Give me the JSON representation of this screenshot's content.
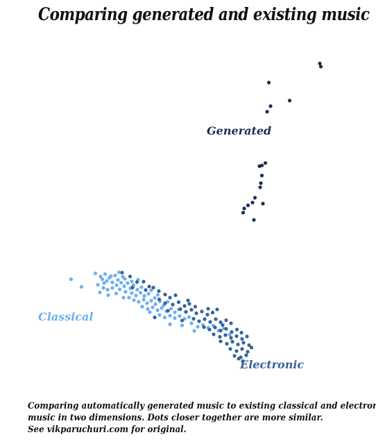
{
  "title": "Comparing generated and existing music",
  "caption": {
    "line1": "Comparing automatically generated music to existing classical and electronic",
    "line2": "music in two dimensions.  Dots closer together are more similar.",
    "line3": "See vikparuchuri.com for original."
  },
  "chart_data": {
    "type": "scatter",
    "title": "Comparing generated and existing music",
    "xlabel": "",
    "ylabel": "",
    "grid": false,
    "legend": "none (series labeled directly on plot)",
    "axes_shown": false,
    "units": "unlabeled 2D embedding; x increases rightward, y increases upward, values estimated on a 0–100 scale",
    "series": [
      {
        "name": "Generated",
        "color": "#1b2f52",
        "points": [
          [
            84.2,
            91.7
          ],
          [
            84.5,
            90.8
          ],
          [
            69.5,
            86.2
          ],
          [
            75.5,
            81.0
          ],
          [
            70.0,
            79.4
          ],
          [
            69.0,
            77.8
          ],
          [
            68.5,
            63.0
          ],
          [
            67.5,
            62.3
          ],
          [
            66.8,
            62.1
          ],
          [
            67.5,
            59.4
          ],
          [
            67.2,
            57.2
          ],
          [
            67.0,
            56.0
          ],
          [
            65.5,
            53.0
          ],
          [
            64.8,
            51.6
          ],
          [
            67.8,
            51.3
          ],
          [
            63.5,
            50.8
          ],
          [
            62.4,
            49.9
          ],
          [
            62.1,
            48.7
          ],
          [
            65.2,
            46.6
          ]
        ]
      },
      {
        "name": "Classical",
        "color": "#6fb0ee",
        "points": [
          [
            12.5,
            29.5
          ],
          [
            15.5,
            27.3
          ],
          [
            19.5,
            31.2
          ],
          [
            21.0,
            30.3
          ],
          [
            21.5,
            29.5
          ],
          [
            22.3,
            31.0
          ],
          [
            22.0,
            28.4
          ],
          [
            23.5,
            29.9
          ],
          [
            24.4,
            28.6
          ],
          [
            25.2,
            30.6
          ],
          [
            26.0,
            29.3
          ],
          [
            26.9,
            28.5
          ],
          [
            27.4,
            30.2
          ],
          [
            20.2,
            27.9
          ],
          [
            21.8,
            27.0
          ],
          [
            23.0,
            26.5
          ],
          [
            24.4,
            27.0
          ],
          [
            25.6,
            27.8
          ],
          [
            26.5,
            26.6
          ],
          [
            27.8,
            27.5
          ],
          [
            28.8,
            28.4
          ],
          [
            29.6,
            26.9
          ],
          [
            30.5,
            27.8
          ],
          [
            31.6,
            26.5
          ],
          [
            32.8,
            27.2
          ],
          [
            28.2,
            25.9
          ],
          [
            30.0,
            25.5
          ],
          [
            31.2,
            24.8
          ],
          [
            32.5,
            25.6
          ],
          [
            33.6,
            24.7
          ],
          [
            34.8,
            25.3
          ],
          [
            35.6,
            26.3
          ],
          [
            36.6,
            24.1
          ],
          [
            37.5,
            25.0
          ],
          [
            29.2,
            24.2
          ],
          [
            30.6,
            23.5
          ],
          [
            32.0,
            23.0
          ],
          [
            33.4,
            23.6
          ],
          [
            34.4,
            22.6
          ],
          [
            35.6,
            23.3
          ],
          [
            36.8,
            22.3
          ],
          [
            38.1,
            23.1
          ],
          [
            39.2,
            22.0
          ],
          [
            40.3,
            23.0
          ],
          [
            33.0,
            21.6
          ],
          [
            34.6,
            20.9
          ],
          [
            36.0,
            21.4
          ],
          [
            37.4,
            20.6
          ],
          [
            38.6,
            21.2
          ],
          [
            40.0,
            20.3
          ],
          [
            41.3,
            21.0
          ],
          [
            42.4,
            20.0
          ],
          [
            43.5,
            20.8
          ],
          [
            38.0,
            19.2
          ],
          [
            39.5,
            18.5
          ],
          [
            41.0,
            19.0
          ],
          [
            42.4,
            18.3
          ],
          [
            43.8,
            18.9
          ],
          [
            45.2,
            18.1
          ],
          [
            46.5,
            18.6
          ],
          [
            41.0,
            16.5
          ],
          [
            44.5,
            16.2
          ],
          [
            47.2,
            16.8
          ],
          [
            49.0,
            15.8
          ],
          [
            50.5,
            16.3
          ],
          [
            52.0,
            15.5
          ],
          [
            53.5,
            16.1
          ],
          [
            55.0,
            14.7
          ],
          [
            56.5,
            15.3
          ],
          [
            58.2,
            13.5
          ],
          [
            22.8,
            29.0
          ],
          [
            24.0,
            30.4
          ],
          [
            26.3,
            31.5
          ],
          [
            28.0,
            29.6
          ],
          [
            30.0,
            28.9
          ],
          [
            31.8,
            29.4
          ],
          [
            20.8,
            25.7
          ],
          [
            23.2,
            24.9
          ],
          [
            25.5,
            25.4
          ],
          [
            27.6,
            24.2
          ],
          [
            35.2,
            20.0
          ],
          [
            48.0,
            14.6
          ]
        ]
      },
      {
        "name": "Electronic",
        "color": "#35649b",
        "points": [
          [
            27.2,
            31.4
          ],
          [
            29.5,
            30.3
          ],
          [
            31.5,
            28.7
          ],
          [
            33.4,
            28.8
          ],
          [
            35.0,
            27.4
          ],
          [
            30.2,
            27.1
          ],
          [
            34.0,
            26.4
          ],
          [
            36.2,
            27.1
          ],
          [
            37.8,
            26.1
          ],
          [
            39.6,
            25.1
          ],
          [
            41.0,
            24.2
          ],
          [
            42.6,
            24.9
          ],
          [
            37.9,
            23.7
          ],
          [
            39.6,
            22.6
          ],
          [
            41.8,
            22.2
          ],
          [
            43.5,
            22.9
          ],
          [
            45.2,
            21.8
          ],
          [
            46.6,
            22.4
          ],
          [
            48.3,
            21.6
          ],
          [
            44.0,
            20.9
          ],
          [
            45.6,
            20.1
          ],
          [
            47.2,
            20.7
          ],
          [
            48.6,
            19.7
          ],
          [
            50.2,
            20.2
          ],
          [
            51.8,
            19.3
          ],
          [
            53.3,
            19.9
          ],
          [
            54.6,
            20.8
          ],
          [
            47.8,
            18.1
          ],
          [
            49.4,
            17.4
          ],
          [
            51.0,
            18.0
          ],
          [
            52.6,
            17.2
          ],
          [
            54.2,
            18.0
          ],
          [
            55.6,
            17.1
          ],
          [
            57.2,
            17.7
          ],
          [
            58.6,
            16.8
          ],
          [
            50.8,
            15.7
          ],
          [
            52.4,
            15.0
          ],
          [
            54.0,
            15.6
          ],
          [
            55.6,
            14.7
          ],
          [
            57.2,
            15.2
          ],
          [
            58.8,
            14.3
          ],
          [
            60.3,
            15.0
          ],
          [
            61.6,
            14.1
          ],
          [
            53.6,
            13.6
          ],
          [
            55.4,
            12.9
          ],
          [
            57.0,
            13.4
          ],
          [
            58.6,
            12.6
          ],
          [
            60.2,
            13.1
          ],
          [
            61.8,
            12.3
          ],
          [
            63.2,
            13.0
          ],
          [
            55.6,
            11.6
          ],
          [
            57.4,
            10.9
          ],
          [
            59.0,
            11.5
          ],
          [
            60.6,
            10.7
          ],
          [
            62.2,
            11.2
          ],
          [
            63.8,
            10.5
          ],
          [
            58.4,
            9.4
          ],
          [
            60.2,
            8.8
          ],
          [
            61.8,
            9.4
          ],
          [
            63.4,
            8.6
          ],
          [
            59.6,
            7.4
          ],
          [
            61.4,
            7.0
          ],
          [
            63.0,
            7.6
          ],
          [
            62.0,
            5.9
          ],
          [
            60.8,
            6.6
          ],
          [
            64.5,
            9.8
          ],
          [
            56.2,
            16.3
          ],
          [
            52.0,
            21.0
          ],
          [
            46.2,
            23.4
          ],
          [
            40.4,
            20.4
          ],
          [
            36.6,
            18.5
          ],
          [
            44.5,
            17.6
          ]
        ]
      }
    ],
    "annotations": [
      "Generated",
      "Classical",
      "Electronic"
    ]
  }
}
